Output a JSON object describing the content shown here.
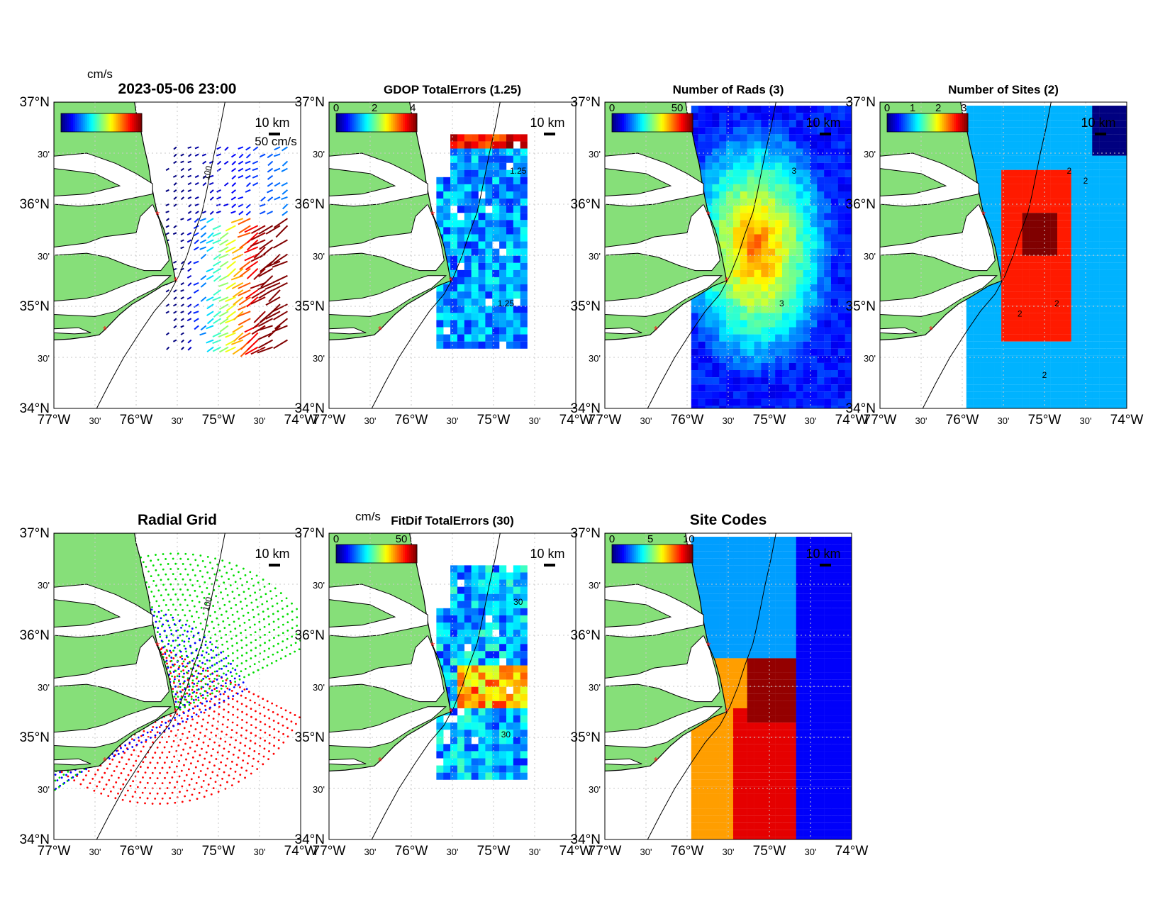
{
  "figure": {
    "lat_ticks": [
      "37°N",
      "30'",
      "36°N",
      "30'",
      "35°N",
      "30'",
      "34°N"
    ],
    "lon_ticks": [
      "77°W",
      "30'",
      "76°W",
      "30'",
      "75°W",
      "30'",
      "74°W"
    ],
    "extent": {
      "lon_min": -77,
      "lon_max": -74,
      "lat_min": 34,
      "lat_max": 37
    },
    "scale_bar_label": "10 km",
    "colors": {
      "land": "#86df79",
      "sea": "#ffffff",
      "site_marker": "#ff2020",
      "coastline": "#000000",
      "radial_grid_sites": [
        "#ff0000",
        "#00dd00",
        "#0000ff"
      ]
    }
  },
  "panels": [
    {
      "id": "totals",
      "title": "2023-05-06 23:00",
      "colorbar_units": "cm/s",
      "colorbar_ticks": [],
      "reference_vector_label": "50 cm/s",
      "isobath_label": "100",
      "content": "surface current vectors"
    },
    {
      "id": "gdop",
      "title": "GDOP TotalErrors (1.25)",
      "colorbar_units": "",
      "colorbar_ticks": [
        "0",
        "2",
        "4"
      ],
      "contour_labels": [
        "1.25",
        "1.25"
      ],
      "content": "GDOP error field"
    },
    {
      "id": "nrads",
      "title": "Number of Rads (3)",
      "colorbar_units": "",
      "colorbar_ticks": [
        "0",
        "50"
      ],
      "contour_labels": [
        "3",
        "3"
      ],
      "content": "number of radials field"
    },
    {
      "id": "nsites",
      "title": "Number of Sites (2)",
      "colorbar_units": "",
      "colorbar_ticks": [
        "0",
        "1",
        "2",
        "3"
      ],
      "contour_labels": [
        "2",
        "2",
        "2",
        "2",
        "2"
      ],
      "content": "number of sites field"
    },
    {
      "id": "radgrid",
      "title": "Radial Grid",
      "colorbar_units": "",
      "colorbar_ticks": [],
      "isobath_label": "100",
      "content": "radial grid points per site"
    },
    {
      "id": "fitdif",
      "title": "FitDif TotalErrors (30)",
      "colorbar_units": "cm/s",
      "colorbar_ticks": [
        "0",
        "50"
      ],
      "contour_labels": [
        "30",
        "30"
      ],
      "content": "fit difference error field"
    },
    {
      "id": "sitecodes",
      "title": "Site Codes",
      "colorbar_units": "",
      "colorbar_ticks": [
        "0",
        "5",
        "10"
      ],
      "content": "site code field"
    }
  ],
  "sites": [
    {
      "lon": -75.74,
      "lat": 35.9
    },
    {
      "lon": -75.52,
      "lat": 35.25
    },
    {
      "lon": -76.38,
      "lat": 34.77
    }
  ]
}
